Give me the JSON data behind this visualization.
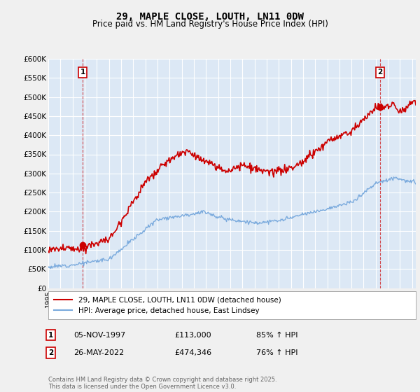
{
  "title_line1": "29, MAPLE CLOSE, LOUTH, LN11 0DW",
  "title_line2": "Price paid vs. HM Land Registry's House Price Index (HPI)",
  "ylim": [
    0,
    600000
  ],
  "yticks": [
    0,
    50000,
    100000,
    150000,
    200000,
    250000,
    300000,
    350000,
    400000,
    450000,
    500000,
    550000,
    600000
  ],
  "ytick_labels": [
    "£0",
    "£50K",
    "£100K",
    "£150K",
    "£200K",
    "£250K",
    "£300K",
    "£350K",
    "£400K",
    "£450K",
    "£500K",
    "£550K",
    "£600K"
  ],
  "hpi_color": "#7aaadd",
  "price_color": "#cc0000",
  "sale1_x": 1997.83,
  "sale1_price": 113000,
  "sale1_date": "05-NOV-1997",
  "sale1_label": "85% ↑ HPI",
  "sale2_x": 2022.37,
  "sale2_price": 474346,
  "sale2_date": "26-MAY-2022",
  "sale2_label": "76% ↑ HPI",
  "legend_label_price": "29, MAPLE CLOSE, LOUTH, LN11 0DW (detached house)",
  "legend_label_hpi": "HPI: Average price, detached house, East Lindsey",
  "footnote": "Contains HM Land Registry data © Crown copyright and database right 2025.\nThis data is licensed under the Open Government Licence v3.0.",
  "background_color": "#f0f0f0",
  "plot_bg_color": "#dce8f5",
  "grid_color": "#ffffff"
}
